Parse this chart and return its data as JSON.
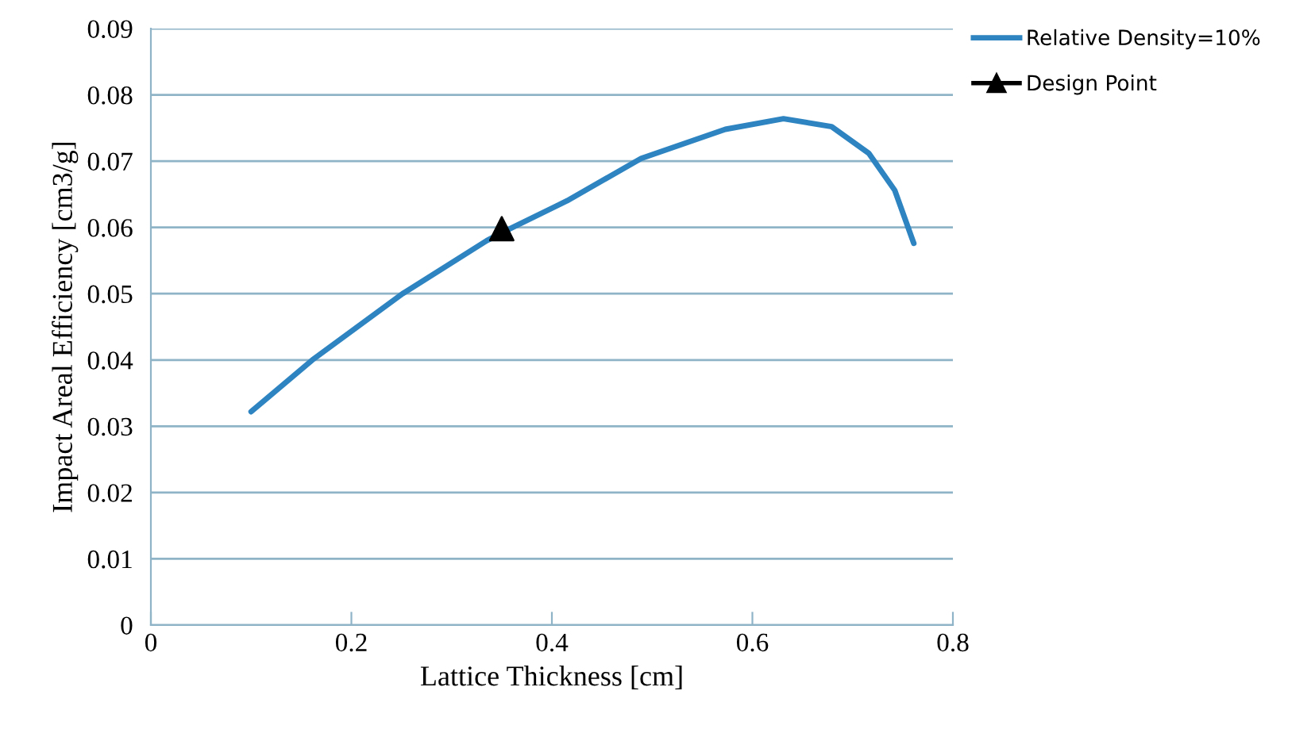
{
  "chart_data": {
    "type": "line",
    "xlabel": "Lattice Thickness [cm]",
    "ylabel": "Impact Areal Efficiency [cm3/g]",
    "series": [
      {
        "name": "Relative Density=10%",
        "color": "#2e84c0",
        "marker": "none",
        "x": [
          0.1,
          0.161,
          0.251,
          0.335,
          0.35,
          0.415,
          0.489,
          0.573,
          0.631,
          0.679,
          0.716,
          0.742,
          0.761
        ],
        "values": [
          0.0322,
          0.04,
          0.05,
          0.058,
          0.0592,
          0.064,
          0.0704,
          0.0748,
          0.0764,
          0.0752,
          0.0712,
          0.0656,
          0.0576
        ]
      },
      {
        "name": "Design Point",
        "type": "scatter",
        "color": "#000000",
        "marker": "triangle",
        "x": [
          0.35
        ],
        "values": [
          0.0598
        ]
      }
    ],
    "xlim": [
      0,
      0.8
    ],
    "xticks": [
      0,
      0.2,
      0.4,
      0.6,
      0.8
    ],
    "ylim": [
      0,
      0.09
    ],
    "yticks": [
      0,
      0.01,
      0.02,
      0.03,
      0.04,
      0.05,
      0.06,
      0.07,
      0.08,
      0.09
    ],
    "grid": "y",
    "legend": "top right"
  }
}
